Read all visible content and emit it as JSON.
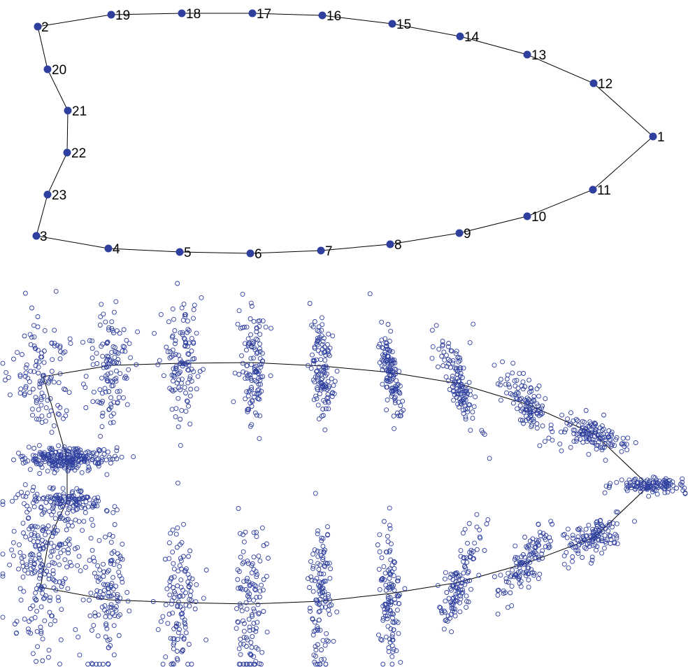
{
  "colors": {
    "point": "#2e3f9e",
    "line": "#000000",
    "background": "#ffffff"
  },
  "landmark_labels": [
    "1",
    "2",
    "3",
    "4",
    "5",
    "6",
    "7",
    "8",
    "9",
    "10",
    "11",
    "12",
    "13",
    "14",
    "15",
    "16",
    "17",
    "18",
    "19",
    "20",
    "21",
    "22",
    "23"
  ],
  "panels": [
    {
      "name": "mean-shape",
      "type": "landmark-outline",
      "point_style": "filled"
    },
    {
      "name": "aligned-shapes",
      "type": "procrustes-scatter",
      "point_style": "open-circle",
      "shapes_per_landmark": 120
    }
  ]
}
